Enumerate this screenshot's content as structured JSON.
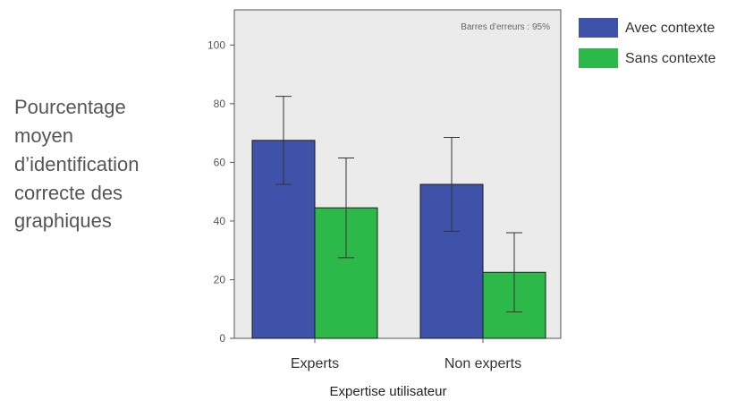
{
  "chart_data": {
    "type": "bar",
    "ylabel_lines": [
      "Pourcentage",
      "moyen",
      "d’identification",
      "correcte des",
      "graphiques"
    ],
    "xlabel": "Expertise utilisateur",
    "annotation": "Barres d'erreurs : 95%",
    "categories": [
      "Experts",
      "Non experts"
    ],
    "series": [
      {
        "name": "Avec contexte",
        "color": "#3d52a8",
        "values": [
          67.5,
          52.5
        ],
        "error_low": [
          52.5,
          36.5
        ],
        "error_high": [
          82.5,
          68.5
        ]
      },
      {
        "name": "Sans contexte",
        "color": "#2db84a",
        "values": [
          44.5,
          22.5
        ],
        "error_low": [
          27.5,
          9
        ],
        "error_high": [
          61.5,
          36
        ]
      }
    ],
    "ylim": [
      0,
      112
    ],
    "yticks": [
      0,
      20,
      40,
      60,
      80,
      100
    ],
    "grid": false,
    "legend_position": "right",
    "plot_background": "#ebebeb"
  }
}
